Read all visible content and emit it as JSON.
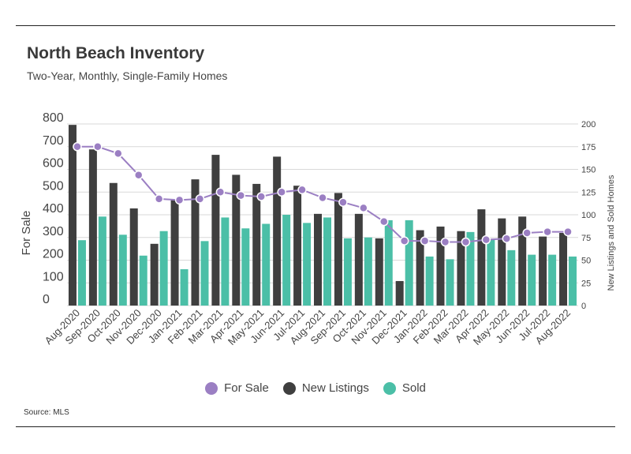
{
  "header": {
    "title": "North Beach Inventory",
    "subtitle": "Two-Year, Monthly, Single-Family Homes"
  },
  "footer": {
    "source": "Source:  MLS"
  },
  "colors": {
    "for_sale": "#9b7fc3",
    "new_listings": "#3f3f3f",
    "sold": "#4bbfa7",
    "grid": "#d9d9d9"
  },
  "chart_data": {
    "type": "bar",
    "categories": [
      "Aug-2020",
      "Sep-2020",
      "Oct-2020",
      "Nov-2020",
      "Dec-2020",
      "Jan-2021",
      "Feb-2021",
      "Mar-2021",
      "Apr-2021",
      "May-2021",
      "Jun-2021",
      "Jul-2021",
      "Aug-2021",
      "Sep-2021",
      "Oct-2021",
      "Nov-2021",
      "Dec-2021",
      "Jan-2022",
      "Feb-2022",
      "Mar-2022",
      "Apr-2022",
      "May-2022",
      "Jun-2022",
      "Jul-2022",
      "Aug-2022"
    ],
    "series": [
      {
        "name": "For Sale",
        "type": "line",
        "axis": "left",
        "values": [
          700,
          700,
          670,
          575,
          470,
          465,
          470,
          500,
          485,
          480,
          500,
          510,
          475,
          455,
          430,
          370,
          285,
          285,
          280,
          280,
          290,
          295,
          320,
          325,
          325
        ]
      },
      {
        "name": "New Listings",
        "type": "bar",
        "axis": "right",
        "values": [
          199,
          172,
          135,
          107,
          68,
          116,
          139,
          166,
          144,
          134,
          164,
          132,
          101,
          124,
          101,
          74,
          27,
          83,
          87,
          82,
          106,
          96,
          98,
          76,
          80
        ]
      },
      {
        "name": "Sold",
        "type": "bar",
        "axis": "right",
        "values": [
          72,
          98,
          78,
          55,
          82,
          40,
          71,
          97,
          85,
          90,
          100,
          91,
          97,
          74,
          75,
          94,
          94,
          54,
          51,
          81,
          73,
          61,
          56,
          56,
          54
        ]
      }
    ],
    "ylabel": "For Sale",
    "y2label": "New Listings and Sold Homes",
    "yticks": [
      "800",
      "700",
      "600",
      "500",
      "400",
      "300",
      "200",
      "100",
      "0"
    ],
    "y2ticks": [
      "200",
      "175",
      "150",
      "125",
      "100",
      "75",
      "50",
      "25",
      "0"
    ],
    "ylim": [
      0,
      800
    ],
    "y2lim": [
      0,
      200
    ],
    "grid": true,
    "legend_position": "bottom"
  }
}
